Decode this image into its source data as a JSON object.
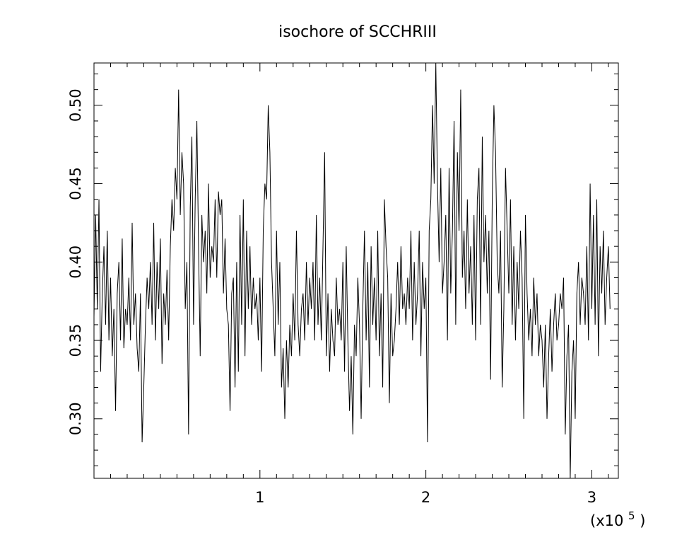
{
  "chart_data": {
    "type": "line",
    "title": "isochore of SCCHRIII",
    "xlabel": "",
    "ylabel": "",
    "x_scale_label": {
      "prefix": "(x10",
      "exponent": "5",
      "suffix": ")"
    },
    "xlim": [
      0,
      316000
    ],
    "ylim": [
      0.262,
      0.527
    ],
    "x_ticks": [
      {
        "value": 100000,
        "label": "1"
      },
      {
        "value": 200000,
        "label": "2"
      },
      {
        "value": 300000,
        "label": "3"
      }
    ],
    "y_ticks": [
      {
        "value": 0.3,
        "label": "0.30"
      },
      {
        "value": 0.35,
        "label": "0.35"
      },
      {
        "value": 0.4,
        "label": "0.40"
      },
      {
        "value": 0.45,
        "label": "0.45"
      },
      {
        "value": 0.5,
        "label": "0.50"
      }
    ],
    "grid": false,
    "legend": "none",
    "series": [
      {
        "color": "#000000",
        "x_start": 0,
        "x_step": 1000,
        "values": [
          0.365,
          0.43,
          0.37,
          0.44,
          0.33,
          0.38,
          0.41,
          0.36,
          0.42,
          0.35,
          0.39,
          0.34,
          0.37,
          0.305,
          0.38,
          0.4,
          0.35,
          0.415,
          0.345,
          0.37,
          0.36,
          0.39,
          0.35,
          0.425,
          0.36,
          0.38,
          0.345,
          0.33,
          0.38,
          0.285,
          0.32,
          0.36,
          0.39,
          0.37,
          0.4,
          0.36,
          0.425,
          0.35,
          0.4,
          0.37,
          0.415,
          0.335,
          0.38,
          0.36,
          0.395,
          0.35,
          0.41,
          0.44,
          0.42,
          0.46,
          0.44,
          0.51,
          0.43,
          0.47,
          0.45,
          0.37,
          0.4,
          0.29,
          0.435,
          0.48,
          0.36,
          0.44,
          0.49,
          0.41,
          0.34,
          0.43,
          0.4,
          0.42,
          0.38,
          0.45,
          0.39,
          0.41,
          0.4,
          0.44,
          0.39,
          0.445,
          0.43,
          0.44,
          0.38,
          0.415,
          0.37,
          0.36,
          0.305,
          0.38,
          0.39,
          0.32,
          0.4,
          0.33,
          0.43,
          0.36,
          0.44,
          0.34,
          0.42,
          0.37,
          0.41,
          0.36,
          0.39,
          0.37,
          0.38,
          0.35,
          0.39,
          0.33,
          0.42,
          0.45,
          0.44,
          0.5,
          0.47,
          0.4,
          0.37,
          0.34,
          0.42,
          0.36,
          0.4,
          0.32,
          0.345,
          0.3,
          0.35,
          0.32,
          0.36,
          0.34,
          0.38,
          0.35,
          0.42,
          0.36,
          0.34,
          0.37,
          0.38,
          0.35,
          0.4,
          0.36,
          0.39,
          0.37,
          0.4,
          0.35,
          0.43,
          0.36,
          0.39,
          0.35,
          0.41,
          0.47,
          0.34,
          0.38,
          0.33,
          0.37,
          0.35,
          0.34,
          0.39,
          0.36,
          0.37,
          0.35,
          0.4,
          0.33,
          0.41,
          0.35,
          0.305,
          0.34,
          0.29,
          0.36,
          0.34,
          0.39,
          0.36,
          0.3,
          0.37,
          0.42,
          0.35,
          0.4,
          0.32,
          0.41,
          0.36,
          0.39,
          0.35,
          0.42,
          0.34,
          0.38,
          0.32,
          0.44,
          0.41,
          0.39,
          0.31,
          0.38,
          0.34,
          0.35,
          0.37,
          0.4,
          0.36,
          0.41,
          0.37,
          0.38,
          0.36,
          0.39,
          0.37,
          0.42,
          0.35,
          0.4,
          0.36,
          0.38,
          0.42,
          0.34,
          0.4,
          0.37,
          0.39,
          0.285,
          0.42,
          0.44,
          0.5,
          0.45,
          0.53,
          0.45,
          0.4,
          0.46,
          0.38,
          0.4,
          0.43,
          0.35,
          0.46,
          0.38,
          0.42,
          0.49,
          0.36,
          0.47,
          0.42,
          0.51,
          0.39,
          0.42,
          0.37,
          0.44,
          0.38,
          0.41,
          0.36,
          0.43,
          0.35,
          0.44,
          0.46,
          0.36,
          0.48,
          0.4,
          0.43,
          0.38,
          0.42,
          0.325,
          0.44,
          0.5,
          0.47,
          0.4,
          0.38,
          0.42,
          0.32,
          0.37,
          0.46,
          0.42,
          0.38,
          0.44,
          0.36,
          0.41,
          0.35,
          0.4,
          0.37,
          0.42,
          0.39,
          0.3,
          0.43,
          0.38,
          0.35,
          0.37,
          0.34,
          0.39,
          0.36,
          0.38,
          0.34,
          0.36,
          0.35,
          0.32,
          0.36,
          0.3,
          0.34,
          0.37,
          0.33,
          0.36,
          0.38,
          0.35,
          0.36,
          0.38,
          0.37,
          0.39,
          0.29,
          0.34,
          0.36,
          0.26,
          0.33,
          0.35,
          0.3,
          0.38,
          0.4,
          0.36,
          0.39,
          0.38,
          0.36,
          0.41,
          0.35,
          0.45,
          0.37,
          0.43,
          0.36,
          0.44,
          0.34,
          0.41,
          0.38,
          0.42,
          0.36,
          0.39,
          0.41,
          0.37
        ]
      }
    ]
  }
}
